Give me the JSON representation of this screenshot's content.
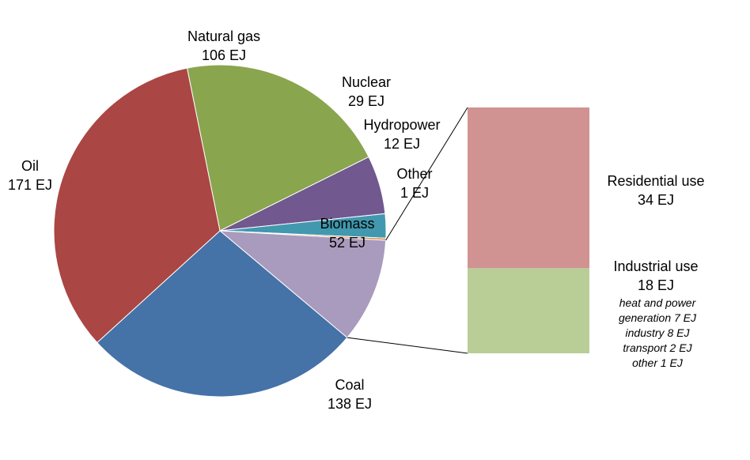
{
  "chart_data": {
    "type": "pie",
    "unit": "EJ",
    "slices": [
      {
        "name": "Natural gas",
        "value": 106,
        "value_label": "106 EJ",
        "color": "#89A54E"
      },
      {
        "name": "Nuclear",
        "value": 29,
        "value_label": "29 EJ",
        "color": "#71588F"
      },
      {
        "name": "Hydropower",
        "value": 12,
        "value_label": "12 EJ",
        "color": "#4198AF"
      },
      {
        "name": "Other",
        "value": 1,
        "value_label": "1 EJ",
        "color": "#DB843D"
      },
      {
        "name": "Biomass",
        "value": 52,
        "value_label": "52 EJ",
        "color": "#A99BBD"
      },
      {
        "name": "Coal",
        "value": 138,
        "value_label": "138 EJ",
        "color": "#4572A7"
      },
      {
        "name": "Oil",
        "value": 171,
        "value_label": "171 EJ",
        "color": "#AA4643"
      }
    ],
    "breakdown": {
      "of": "Biomass",
      "type": "stacked-bar",
      "segments": [
        {
          "name": "Residential use",
          "value": 34,
          "value_label": "34 EJ",
          "color": "#D19392",
          "details": []
        },
        {
          "name": "Industrial use",
          "value": 18,
          "value_label": "18 EJ",
          "color": "#B9CD96",
          "details": [
            "heat and power",
            "generation 7 EJ",
            "industry 8 EJ",
            "transport 2 EJ",
            "other 1 EJ"
          ]
        }
      ]
    }
  }
}
